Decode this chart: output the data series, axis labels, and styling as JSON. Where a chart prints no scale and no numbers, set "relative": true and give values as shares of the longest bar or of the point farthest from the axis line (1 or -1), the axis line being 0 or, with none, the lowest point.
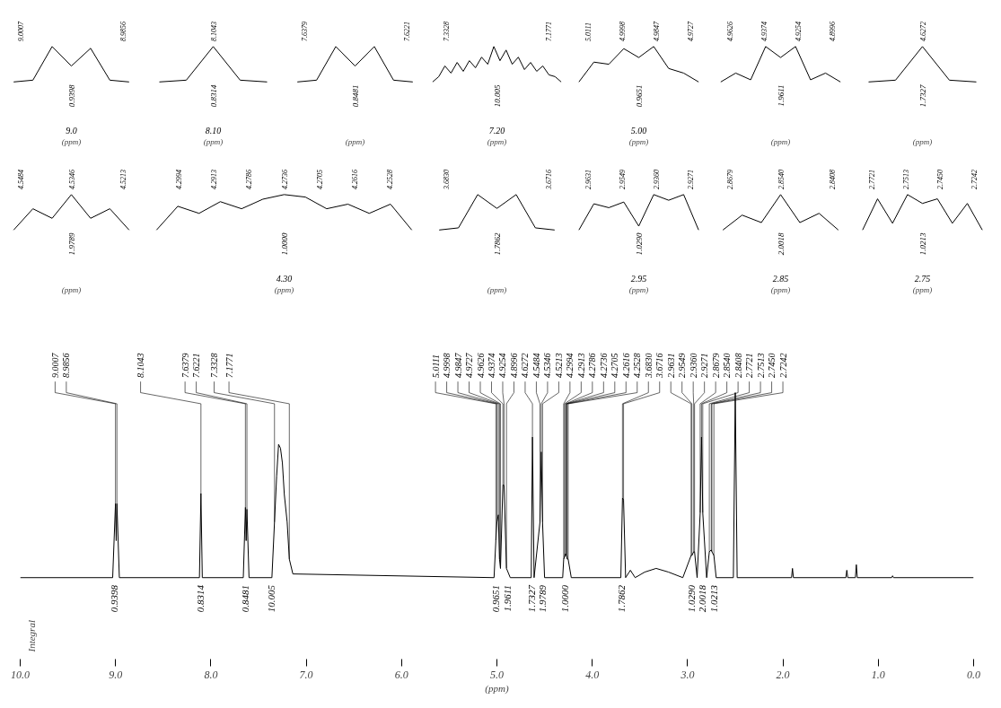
{
  "chart_data": [
    {
      "type": "line",
      "relative": true,
      "xlabel": "(ppm)",
      "categories": [
        null,
        null,
        null,
        null,
        null,
        null,
        null
      ],
      "series": [
        {
          "color": "#000000",
          "values": [
            0,
            0.05,
            1.0,
            0.45,
            0.95,
            0.05,
            0
          ]
        }
      ],
      "annotations": [
        "0.9398",
        "9.0",
        {
          "text": "9.0007"
        },
        {
          "text": "8.9856"
        }
      ]
    },
    {
      "type": "line",
      "relative": true,
      "xlabel": "(ppm)",
      "categories": [
        null,
        null,
        null,
        null,
        null
      ],
      "series": [
        {
          "color": "#000000",
          "values": [
            0,
            0.05,
            1.0,
            0.05,
            0
          ]
        }
      ],
      "annotations": [
        "0.8314",
        "8.10",
        {
          "text": "8.1043"
        }
      ]
    },
    {
      "type": "line",
      "relative": true,
      "xlabel": "(ppm)",
      "categories": [
        null,
        null,
        null,
        null,
        null,
        null,
        null
      ],
      "series": [
        {
          "color": "#000000",
          "values": [
            0,
            0.05,
            1.0,
            0.45,
            1.0,
            0.05,
            0
          ]
        }
      ],
      "annotations": [
        "0.8481",
        {
          "text": "7.6379"
        },
        {
          "text": "7.6221"
        }
      ]
    },
    {
      "type": "line",
      "relative": true,
      "xlabel": "(ppm)",
      "categories": [
        null,
        null,
        null,
        null,
        null,
        null,
        null,
        null,
        null,
        null,
        null,
        null,
        null,
        null,
        null,
        null,
        null,
        null,
        null,
        null,
        null,
        null
      ],
      "series": [
        {
          "color": "#000000",
          "values": [
            0,
            0.15,
            0.45,
            0.25,
            0.55,
            0.3,
            0.6,
            0.4,
            0.7,
            0.5,
            1.0,
            0.6,
            0.9,
            0.5,
            0.7,
            0.35,
            0.55,
            0.3,
            0.45,
            0.2,
            0.15,
            0
          ]
        }
      ],
      "annotations": [
        "10.005",
        "7.20",
        {
          "text": "7.3328"
        },
        {
          "text": "7.1771"
        }
      ]
    },
    {
      "type": "line",
      "relative": true,
      "xlabel": "(ppm)",
      "categories": [
        null,
        null,
        null,
        null,
        null,
        null,
        null,
        null,
        null
      ],
      "series": [
        {
          "color": "#000000",
          "values": [
            0,
            0.56,
            0.5,
            0.94,
            0.69,
            1,
            0.38,
            0.25,
            0
          ]
        }
      ],
      "annotations": [
        "0.9651",
        "5.00",
        {
          "text": "5.0111"
        },
        {
          "text": "4.9998"
        },
        {
          "text": "4.9847"
        },
        {
          "text": "4.9727"
        }
      ]
    },
    {
      "type": "line",
      "relative": true,
      "xlabel": "(ppm)",
      "categories": [
        null,
        null,
        null,
        null,
        null,
        null,
        null,
        null,
        null
      ],
      "series": [
        {
          "color": "#000000",
          "values": [
            0,
            0.25,
            0.06,
            1,
            0.69,
            1,
            0.06,
            0.25,
            0
          ]
        }
      ],
      "annotations": [
        "1.9611",
        {
          "text": "4.9626"
        },
        {
          "text": "4.9374"
        },
        {
          "text": "4.9254"
        },
        {
          "text": "4.8996"
        }
      ]
    },
    {
      "type": "line",
      "relative": true,
      "xlabel": "(ppm)",
      "categories": [
        null,
        null,
        null,
        null,
        null
      ],
      "series": [
        {
          "color": "#000000",
          "values": [
            0,
            0.05,
            1.0,
            0.05,
            0
          ]
        }
      ],
      "annotations": [
        "1.7327",
        {
          "text": "4.6272"
        }
      ]
    },
    {
      "type": "line",
      "relative": true,
      "xlabel": "(ppm)",
      "categories": [
        null,
        null,
        null,
        null,
        null,
        null,
        null
      ],
      "series": [
        {
          "color": "#000000",
          "values": [
            0,
            0.6,
            0.33,
            1,
            0.33,
            0.6,
            0
          ]
        }
      ],
      "annotations": [
        "1.9789",
        {
          "text": "4.5484"
        },
        {
          "text": "4.5346"
        },
        {
          "text": "4.5213"
        }
      ]
    },
    {
      "type": "line",
      "relative": true,
      "xlabel": "(ppm)",
      "categories": [
        null,
        null,
        null,
        null,
        null,
        null,
        null,
        null,
        null,
        null,
        null,
        null,
        null
      ],
      "series": [
        {
          "color": "#000000",
          "values": [
            0,
            0.67,
            0.47,
            0.8,
            0.6,
            0.87,
            1,
            0.93,
            0.6,
            0.73,
            0.47,
            0.73,
            0
          ]
        }
      ],
      "annotations": [
        "1.0000",
        "4.30",
        {
          "text": "4.2994"
        },
        {
          "text": "4.2913"
        },
        {
          "text": "4.2786"
        },
        {
          "text": "4.2736"
        },
        {
          "text": "4.2705"
        },
        {
          "text": "4.2616"
        },
        {
          "text": "4.2528"
        }
      ]
    },
    {
      "type": "line",
      "relative": true,
      "xlabel": "(ppm)",
      "categories": [
        null,
        null,
        null,
        null,
        null,
        null,
        null
      ],
      "series": [
        {
          "color": "#000000",
          "values": [
            0,
            0.06,
            1,
            0.61,
            1,
            0.06,
            0
          ]
        }
      ],
      "annotations": [
        "1.7862",
        {
          "text": "3.6830"
        },
        {
          "text": "3.6716"
        }
      ]
    },
    {
      "type": "line",
      "relative": true,
      "xlabel": "(ppm)",
      "categories": [
        null,
        null,
        null,
        null,
        null,
        null,
        null,
        null,
        null
      ],
      "series": [
        {
          "color": "#000000",
          "values": [
            0,
            0.74,
            0.63,
            0.79,
            0.11,
            1,
            0.84,
            1,
            0
          ]
        }
      ],
      "annotations": [
        "1.0290",
        "2.95",
        {
          "text": "2.9631"
        },
        {
          "text": "2.9549"
        },
        {
          "text": "2.9360"
        },
        {
          "text": "2.9271"
        }
      ]
    },
    {
      "type": "line",
      "relative": true,
      "xlabel": "(ppm)",
      "categories": [
        null,
        null,
        null,
        null,
        null,
        null,
        null
      ],
      "series": [
        {
          "color": "#000000",
          "values": [
            0,
            0.42,
            0.21,
            1,
            0.21,
            0.47,
            0
          ]
        }
      ],
      "annotations": [
        "2.0018",
        "2.85",
        {
          "text": "2.8679"
        },
        {
          "text": "2.8540"
        },
        {
          "text": "2.8408"
        }
      ]
    },
    {
      "type": "line",
      "relative": true,
      "xlabel": "(ppm)",
      "categories": [
        null,
        null,
        null,
        null,
        null,
        null,
        null,
        null,
        null
      ],
      "series": [
        {
          "color": "#000000",
          "values": [
            0,
            0.88,
            0.19,
            1,
            0.75,
            0.88,
            0.19,
            0.75,
            0
          ]
        }
      ],
      "annotations": [
        "1.0213",
        "2.75",
        {
          "text": "2.7721"
        },
        {
          "text": "2.7513"
        },
        {
          "text": "2.7450"
        },
        {
          "text": "2.7242"
        }
      ]
    },
    {
      "type": "line",
      "relative": true,
      "xlabel": "(ppm)",
      "xlim": [
        10,
        0
      ],
      "xticks": [
        {
          "value": 10,
          "label": "10.0"
        },
        {
          "value": 9,
          "label": "9.0"
        },
        {
          "value": 8,
          "label": "8.0"
        },
        {
          "value": 7,
          "label": "7.0"
        },
        {
          "value": 6,
          "label": "6.0"
        },
        {
          "value": 5,
          "label": "5.0"
        },
        {
          "value": 4,
          "label": "4.0"
        },
        {
          "value": 3,
          "label": "3.0"
        },
        {
          "value": 2,
          "label": "2.0"
        },
        {
          "value": 1,
          "label": "1.0"
        },
        {
          "value": 0,
          "label": "0.0"
        }
      ],
      "x": [
        10,
        9.03,
        9.0007,
        8.993,
        8.9856,
        8.96,
        8.12,
        8.1043,
        8.09,
        7.66,
        7.6379,
        7.63,
        7.6221,
        7.6,
        7.36,
        7.3328,
        7.31,
        7.29,
        7.27,
        7.25,
        7.23,
        7.2,
        7.1771,
        7.14,
        5.03,
        5.0111,
        4.9998,
        4.9847,
        4.9727,
        4.9626,
        4.9374,
        4.9254,
        4.8996,
        4.86,
        4.64,
        4.6272,
        4.61,
        4.5484,
        4.5346,
        4.5213,
        4.5,
        4.31,
        4.2994,
        4.2913,
        4.2786,
        4.2736,
        4.2705,
        4.2616,
        4.2528,
        4.22,
        3.7,
        3.683,
        3.6716,
        3.65,
        3.6,
        3.55,
        3.45,
        3.33,
        3.2,
        3.05,
        2.9631,
        2.9549,
        2.936,
        2.9271,
        2.9,
        2.8679,
        2.854,
        2.8408,
        2.8,
        2.7721,
        2.7513,
        2.745,
        2.7242,
        2.7,
        2.52,
        2.5,
        2.48,
        1.91,
        1.9,
        1.89,
        1.34,
        1.33,
        1.32,
        1.24,
        1.23,
        1.22,
        0.86,
        0.85,
        0.84,
        0
      ],
      "series": [
        {
          "color": "#000000",
          "values": [
            0,
            0,
            0.4,
            0.2,
            0.4,
            0,
            0,
            0.455,
            0,
            0,
            0.38,
            0.2,
            0.37,
            0,
            0,
            0.3,
            0.55,
            0.72,
            0.7,
            0.62,
            0.45,
            0.3,
            0.1,
            0.02,
            0,
            0.2,
            0.3,
            0.34,
            0.1,
            0.05,
            0.5,
            0.5,
            0.05,
            0,
            0,
            0.76,
            0,
            0.3,
            0.68,
            0.3,
            0,
            0,
            0.1,
            0.11,
            0.13,
            0.12,
            0.12,
            0.1,
            0.1,
            0,
            0,
            0.43,
            0.42,
            0,
            0.04,
            0,
            0.03,
            0.05,
            0.03,
            0,
            0.12,
            0.12,
            0.14,
            0.14,
            0,
            0.35,
            0.76,
            0.35,
            0,
            0.14,
            0.15,
            0.14,
            0.12,
            0,
            0,
            1.0,
            0,
            0,
            0.05,
            0,
            0,
            0.04,
            0,
            0,
            0.07,
            0,
            0,
            0.01,
            0,
            0
          ]
        }
      ],
      "annotations": [
        "Integral",
        {
          "text": "9.0007",
          "x": 9.0007,
          "y": 0.4
        },
        {
          "text": "8.9856",
          "x": 8.9856,
          "y": 0.4
        },
        {
          "text": "8.1043",
          "x": 8.1043,
          "y": 0.455
        },
        {
          "text": "7.6379",
          "x": 7.6379,
          "y": 0.38
        },
        {
          "text": "7.6221",
          "x": 7.6221,
          "y": 0.37
        },
        {
          "text": "7.3328",
          "x": 7.3328,
          "y": 0.3
        },
        {
          "text": "7.1771",
          "x": 7.1771,
          "y": 0.1
        },
        {
          "text": "5.0111",
          "x": 5.0111,
          "y": 0.2
        },
        {
          "text": "4.9998",
          "x": 4.9998,
          "y": 0.3
        },
        {
          "text": "4.9847",
          "x": 4.9847,
          "y": 0.34
        },
        {
          "text": "4.9727",
          "x": 4.9727,
          "y": 0.1
        },
        {
          "text": "4.9626",
          "x": 4.9626,
          "y": 0.05
        },
        {
          "text": "4.9374",
          "x": 4.9374,
          "y": 0.5
        },
        {
          "text": "4.9254",
          "x": 4.9254,
          "y": 0.5
        },
        {
          "text": "4.8996",
          "x": 4.8996,
          "y": 0.05
        },
        {
          "text": "4.6272",
          "x": 4.6272,
          "y": 0.76
        },
        {
          "text": "4.5484",
          "x": 4.5484,
          "y": 0.3
        },
        {
          "text": "4.5346",
          "x": 4.5346,
          "y": 0.68
        },
        {
          "text": "4.5213",
          "x": 4.5213,
          "y": 0.3
        },
        {
          "text": "4.2994",
          "x": 4.2994,
          "y": 0.1
        },
        {
          "text": "4.2913",
          "x": 4.2913,
          "y": 0.11
        },
        {
          "text": "4.2786",
          "x": 4.2786,
          "y": 0.13
        },
        {
          "text": "4.2736",
          "x": 4.2736,
          "y": 0.12
        },
        {
          "text": "4.2705",
          "x": 4.2705,
          "y": 0.12
        },
        {
          "text": "4.2616",
          "x": 4.2616,
          "y": 0.1
        },
        {
          "text": "4.2528",
          "x": 4.2528,
          "y": 0.1
        },
        {
          "text": "3.6830",
          "x": 3.683,
          "y": 0.43
        },
        {
          "text": "3.6716",
          "x": 3.6716,
          "y": 0.42
        },
        {
          "text": "2.9631",
          "x": 2.9631,
          "y": 0.12
        },
        {
          "text": "2.9549",
          "x": 2.9549,
          "y": 0.12
        },
        {
          "text": "2.9360",
          "x": 2.936,
          "y": 0.14
        },
        {
          "text": "2.9271",
          "x": 2.9271,
          "y": 0.14
        },
        {
          "text": "2.8679",
          "x": 2.8679,
          "y": 0.35
        },
        {
          "text": "2.8540",
          "x": 2.854,
          "y": 0.76
        },
        {
          "text": "2.8408",
          "x": 2.8408,
          "y": 0.35
        },
        {
          "text": "2.7721",
          "x": 2.7721,
          "y": 0.14
        },
        {
          "text": "2.7513",
          "x": 2.7513,
          "y": 0.15
        },
        {
          "text": "2.7450",
          "x": 2.745,
          "y": 0.14
        },
        {
          "text": "2.7242",
          "x": 2.7242,
          "y": 0.12
        },
        {
          "text": "0.9398",
          "x": 9.0,
          "y": 0
        },
        {
          "text": "0.8314",
          "x": 8.1,
          "y": 0
        },
        {
          "text": "0.8481",
          "x": 7.63,
          "y": 0
        },
        {
          "text": "10.005",
          "x": 7.36,
          "y": 0
        },
        {
          "text": "0.9651",
          "x": 5.0,
          "y": 0
        },
        {
          "text": "1.9611",
          "x": 4.9,
          "y": 0
        },
        {
          "text": "1.7327",
          "x": 4.63,
          "y": 0
        },
        {
          "text": "1.9789",
          "x": 4.53,
          "y": 0
        },
        {
          "text": "1.0000",
          "x": 4.28,
          "y": 0
        },
        {
          "text": "1.7862",
          "x": 3.68,
          "y": 0
        },
        {
          "text": "1.0290",
          "x": 2.95,
          "y": 0
        },
        {
          "text": "2.0018",
          "x": 2.85,
          "y": 0
        },
        {
          "text": "1.0213",
          "x": 2.75,
          "y": 0
        }
      ]
    }
  ]
}
